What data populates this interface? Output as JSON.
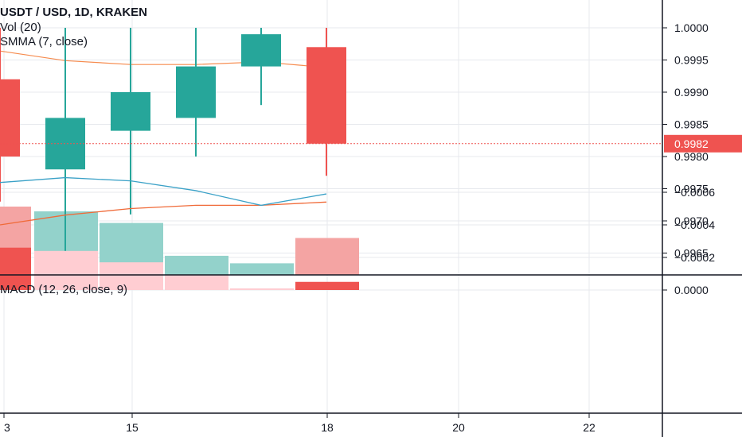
{
  "header": {
    "symbol_line": "USDT / USD, 1D, KRAKEN",
    "volume_label": "Vol (20)",
    "smma_label": "SMMA (7, close)",
    "macd_label": "MACD (12, 26, close, 9)"
  },
  "colors": {
    "up": "#26a69a",
    "down": "#ef5350",
    "vol_up": "#93d2cb",
    "vol_down": "#f4a4a3",
    "hist_light": "#ffcdd2",
    "hist_dark": "#ef5350",
    "smma": "#f68b4e",
    "macd_line": "#3aa1c7",
    "signal_line": "#f06a38",
    "grid": "#e7e9ee",
    "axis": "#131722",
    "last_price": "#ef5350"
  },
  "chart_data": {
    "type": "candlestick",
    "x_ticks": [
      "3",
      "15",
      "18",
      "20",
      "22"
    ],
    "last_price_label": "0.9982",
    "price_axis": {
      "ticks": [
        "1.0000",
        "0.9995",
        "0.9990",
        "0.9985",
        "0.9980",
        "0.9975",
        "0.9970",
        "0.9965"
      ],
      "tick_values": [
        1.0,
        0.9995,
        0.999,
        0.9985,
        0.998,
        0.9975,
        0.997,
        0.9965
      ],
      "range": [
        0.99615,
        1.00035
      ]
    },
    "candles": [
      {
        "open": 0.9992,
        "high": 1.0,
        "low": 0.9973,
        "close": 0.998
      },
      {
        "open": 0.9978,
        "high": 1.0,
        "low": 0.9965,
        "close": 0.9986
      },
      {
        "open": 0.9984,
        "high": 1.0,
        "low": 0.9971,
        "close": 0.999
      },
      {
        "open": 0.9986,
        "high": 1.0,
        "low": 0.998,
        "close": 0.9994
      },
      {
        "open": 0.9994,
        "high": 1.0,
        "low": 0.9988,
        "close": 0.9999
      },
      {
        "open": 0.9997,
        "high": 1.0,
        "low": 0.9977,
        "close": 0.9982
      }
    ],
    "smma": [
      0.99964,
      0.99949,
      0.99943,
      0.99943,
      0.99947,
      0.99941
    ],
    "volume": [
      {
        "value": 1.0,
        "dir": "down"
      },
      {
        "value": 0.93,
        "dir": "up"
      },
      {
        "value": 0.76,
        "dir": "up"
      },
      {
        "value": 0.28,
        "dir": "up"
      },
      {
        "value": 0.17,
        "dir": "up"
      },
      {
        "value": 0.54,
        "dir": "down"
      }
    ],
    "macd_axis": {
      "ticks": [
        "0.0000",
        "−0.0002",
        "−0.0004",
        "−0.0006"
      ],
      "tick_values": [
        0.0,
        -0.0002,
        -0.0004,
        -0.0006
      ],
      "range": [
        -0.00077,
        7e-05
      ]
    },
    "macd_histogram": [
      {
        "value": -0.00026,
        "shade": "dark"
      },
      {
        "value": -0.00024,
        "shade": "light"
      },
      {
        "value": -0.00017,
        "shade": "light"
      },
      {
        "value": -9e-05,
        "shade": "light"
      },
      {
        "value": -1e-05,
        "shade": "light"
      },
      {
        "value": -5e-05,
        "shade": "dark"
      }
    ],
    "macd_line": [
      -0.00066,
      -0.00069,
      -0.00067,
      -0.00061,
      -0.00052,
      -0.00059
    ],
    "signal_line": [
      -0.0004,
      -0.00046,
      -0.0005,
      -0.00052,
      -0.00052,
      -0.00054
    ]
  }
}
